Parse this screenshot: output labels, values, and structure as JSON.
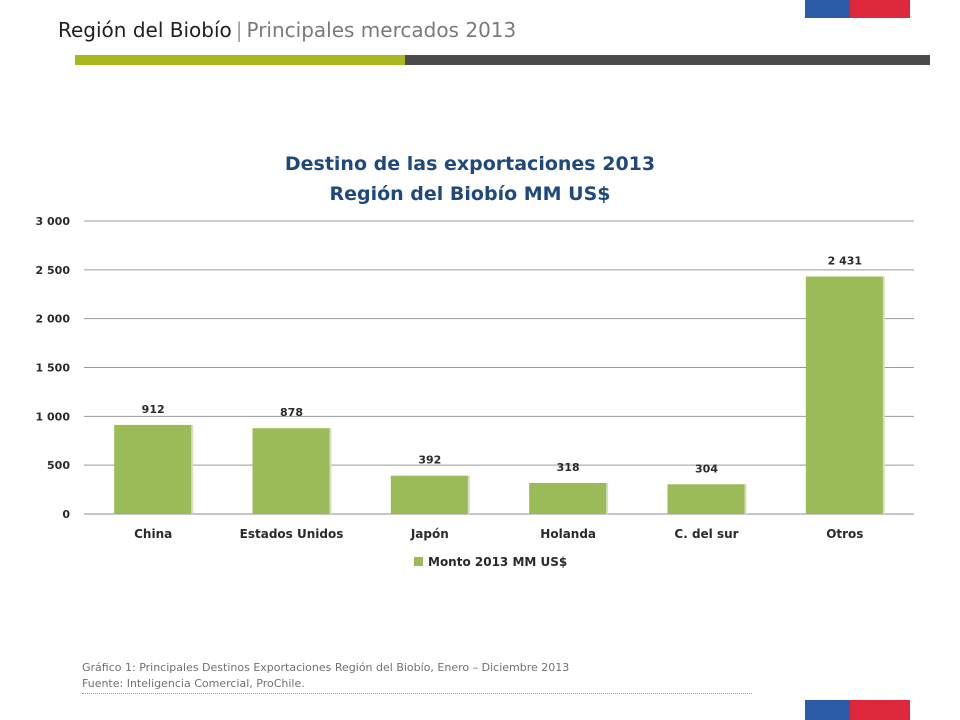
{
  "header": {
    "title": "Región del Biobío",
    "separator": "|",
    "subtitle": "Principales mercados 2013"
  },
  "colors": {
    "accent_green": "#aab820",
    "bar_dark": "#4a4a4a",
    "bar_fill": "#9bbb59",
    "title_blue": "#1f497d",
    "flag_blue": "#2c5ba8",
    "flag_red": "#e0283d"
  },
  "chart_data": {
    "type": "bar",
    "title": "Destino de las exportaciones 2013",
    "subtitle": "Región del Biobío MM US$",
    "categories": [
      "China",
      "Estados Unidos",
      "Japón",
      "Holanda",
      "C. del sur",
      "Otros"
    ],
    "series": [
      {
        "name": "Monto 2013 MM US$",
        "values": [
          912,
          878,
          392,
          318,
          304,
          2431
        ]
      }
    ],
    "value_labels": [
      "912",
      "878",
      "392",
      "318",
      "304",
      "2 431"
    ],
    "yticks": [
      0,
      500,
      1000,
      1500,
      2000,
      2500,
      3000
    ],
    "ytick_labels": [
      "0",
      "500",
      "1 000",
      "1 500",
      "2 000",
      "2 500",
      "3 000"
    ],
    "ylim": [
      0,
      3000
    ],
    "grid": true,
    "legend_position": "bottom"
  },
  "caption": {
    "line1": "Gráfico 1: Principales Destinos Exportaciones Región del Biobío, Enero – Diciembre 2013",
    "line2": "Fuente: Inteligencia Comercial, ProChile."
  }
}
